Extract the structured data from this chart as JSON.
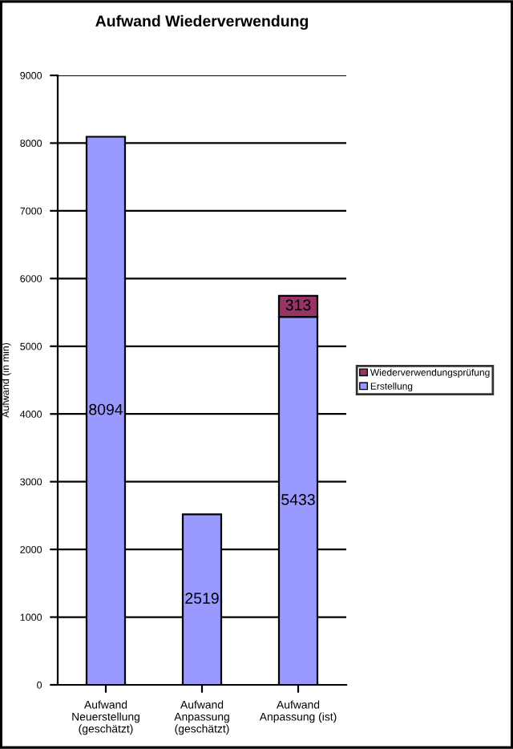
{
  "chart_data": {
    "type": "bar",
    "title": "Aufwand Wiederverwendung",
    "ylabel": "Aufwand (in min)",
    "categories": [
      "Aufwand Neuerstellung (geschätzt)",
      "Aufwand Anpassung (geschätzt)",
      "Aufwand Anpassung (ist)"
    ],
    "series": [
      {
        "name": "Erstellung",
        "color": "#9999ff",
        "values": [
          8094,
          2519,
          5433
        ]
      },
      {
        "name": "Wiederverwendungsprüfung",
        "color": "#993366",
        "values": [
          null,
          null,
          313
        ]
      }
    ],
    "stacked": true,
    "ylim": [
      0,
      9000
    ],
    "yticks": [
      0,
      1000,
      2000,
      3000,
      4000,
      5000,
      6000,
      7000,
      8000,
      9000
    ],
    "grid": "y",
    "legend": "right",
    "data_labels": true
  }
}
